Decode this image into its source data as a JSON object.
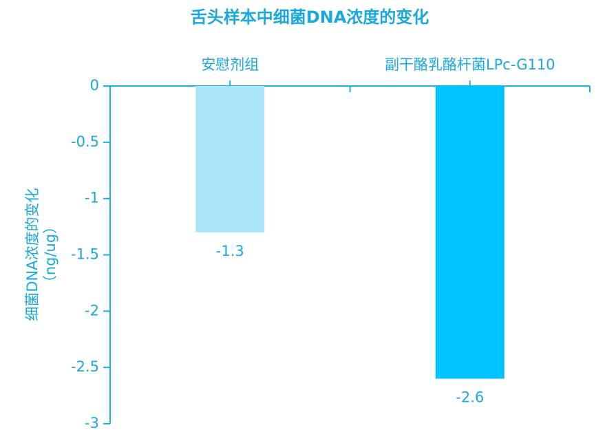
{
  "chart_data": {
    "type": "bar",
    "title": "舌头样本中细菌DNA浓度的变化",
    "ylabel": [
      "细菌DNA浓度的变化",
      "（ng/ug）"
    ],
    "categories": [
      "安慰剂组",
      "副干酪乳酪杆菌LPc-G110"
    ],
    "values": [
      -1.3,
      -2.6
    ],
    "colors": [
      "#abe6f8",
      "#00c3ff"
    ],
    "ylim": [
      -3,
      0
    ],
    "yticks": [
      0,
      -0.5,
      -1,
      -1.5,
      -2,
      -2.5,
      -3
    ],
    "axis_color": "#1ab0e8",
    "text_color": "#1aa8e0"
  }
}
